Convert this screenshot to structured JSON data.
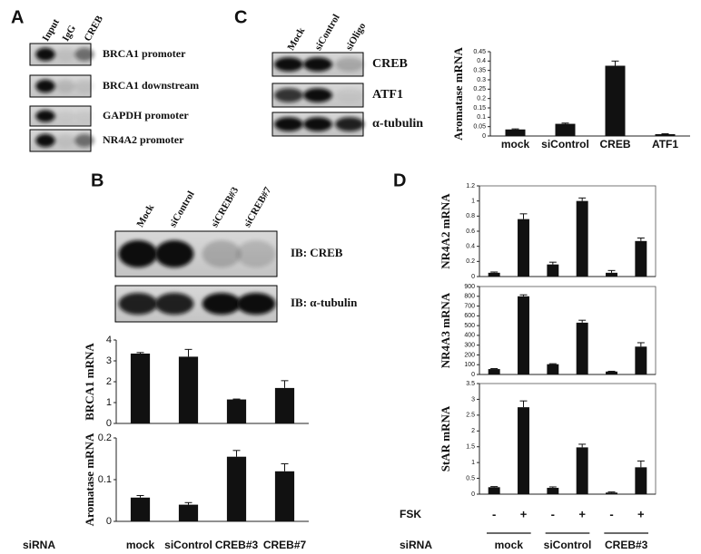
{
  "panels": [
    {
      "label": "A",
      "lanes": [
        "Input",
        "IgG",
        "CREB"
      ],
      "rows": [
        "BRCA1 promoter",
        "BRCA1 downstream",
        "GAPDH promoter",
        "NR4A2 promoter"
      ]
    },
    {
      "label": "C",
      "lanes": [
        "Mock",
        "siControl",
        "siOligo"
      ],
      "rows": [
        "CREB",
        "ATF1",
        "α-tubulin"
      ]
    },
    {
      "label": "B",
      "lanes": [
        "Mock",
        "siControl",
        "siCREB#3",
        "siCREB#7"
      ],
      "rows": [
        "IB: CREB",
        "IB: α-tubulin"
      ]
    },
    {
      "label": "D"
    }
  ],
  "chart_data": [
    {
      "type": "bar",
      "ylabel": "Aromatase mRNA",
      "categories": [
        "mock",
        "siControl",
        "CREB",
        "ATF1"
      ],
      "values": [
        0.035,
        0.065,
        0.375,
        0.01
      ],
      "errors": [
        0.003,
        0.004,
        0.025,
        0.002
      ],
      "color": "#111111",
      "ylim": [
        0,
        0.45
      ],
      "yticks": [
        0,
        0.05,
        0.1,
        0.15,
        0.2,
        0.25,
        0.3,
        0.35,
        0.4,
        0.45
      ]
    },
    {
      "type": "bar",
      "ylabel": "BRCA1 mRNA",
      "values": [
        3.35,
        3.2,
        1.15,
        1.7
      ],
      "errors": [
        0.05,
        0.35,
        0.02,
        0.35
      ],
      "color": "#111111",
      "ylim": [
        0,
        4
      ],
      "yticks": [
        0,
        1,
        2,
        3,
        4
      ]
    },
    {
      "type": "bar",
      "ylabel": "Aromatase mRNA",
      "x_label": "siRNA",
      "categories": [
        "mock",
        "siControl",
        "CREB#3",
        "CREB#7"
      ],
      "values": [
        0.057,
        0.04,
        0.155,
        0.12
      ],
      "errors": [
        0.005,
        0.005,
        0.015,
        0.018
      ],
      "color": "#111111",
      "ylim": [
        0,
        0.2
      ],
      "yticks": [
        0,
        0.1,
        0.2
      ]
    },
    {
      "type": "bar",
      "ylabel": "NR4A2 mRNA",
      "values": [
        0.05,
        0.76,
        0.16,
        1.0,
        0.05,
        0.47
      ],
      "errors": [
        0.01,
        0.07,
        0.03,
        0.04,
        0.03,
        0.04
      ],
      "color": "#111111",
      "ylim": [
        0,
        1.2
      ],
      "yticks": [
        0,
        0.2,
        0.4,
        0.6,
        0.8,
        1,
        1.2
      ]
    },
    {
      "type": "bar",
      "ylabel": "NR4A3 mRNA",
      "values": [
        55,
        800,
        105,
        530,
        30,
        285
      ],
      "errors": [
        5,
        15,
        5,
        25,
        3,
        40
      ],
      "color": "#111111",
      "ylim": [
        0,
        900
      ],
      "yticks": [
        0,
        100,
        200,
        300,
        400,
        500,
        600,
        700,
        800,
        900
      ]
    },
    {
      "type": "bar",
      "ylabel": "StAR mRNA",
      "category_label": "FSK",
      "categories": [
        "-",
        "+",
        "-",
        "+",
        "-",
        "+"
      ],
      "group_label": "siRNA",
      "groups": [
        "mock",
        "siControl",
        "CREB#3"
      ],
      "values": [
        0.22,
        2.75,
        0.2,
        1.48,
        0.05,
        0.85
      ],
      "errors": [
        0.02,
        0.2,
        0.03,
        0.1,
        0.02,
        0.2
      ],
      "color": "#111111",
      "ylim": [
        0,
        3.5
      ],
      "yticks": [
        0,
        0.5,
        1,
        1.5,
        2,
        2.5,
        3,
        3.5
      ]
    }
  ]
}
